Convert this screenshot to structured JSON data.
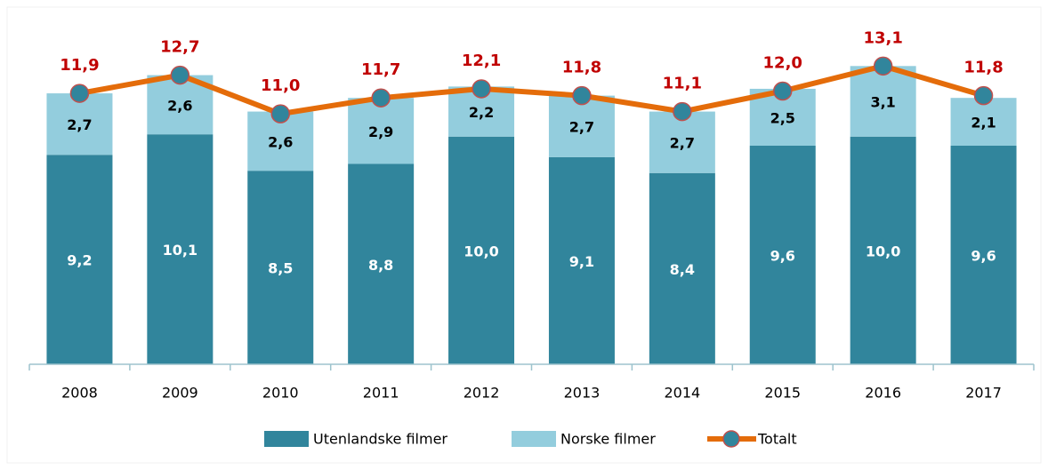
{
  "chart_data": {
    "type": "bar",
    "stacked": true,
    "categories": [
      "2008",
      "2009",
      "2010",
      "2011",
      "2012",
      "2013",
      "2014",
      "2015",
      "2016",
      "2017"
    ],
    "ylim": [
      0,
      16
    ],
    "series": [
      {
        "name": "Utenlandske filmer",
        "color": "#31859c",
        "values": [
          9.2,
          10.1,
          8.5,
          8.8,
          10.0,
          9.1,
          8.4,
          9.6,
          10.0,
          9.6
        ],
        "value_labels": [
          "9,2",
          "10,1",
          "8,5",
          "8,8",
          "10,0",
          "9,1",
          "8,4",
          "9,6",
          "10,0",
          "9,6"
        ]
      },
      {
        "name": "Norske filmer",
        "color": "#93cddd",
        "values": [
          2.7,
          2.6,
          2.6,
          2.9,
          2.2,
          2.7,
          2.7,
          2.5,
          3.1,
          2.1
        ],
        "value_labels": [
          "2,7",
          "2,6",
          "2,6",
          "2,9",
          "2,2",
          "2,7",
          "2,7",
          "2,5",
          "3,1",
          "2,1"
        ]
      },
      {
        "name": "Totalt",
        "type": "line",
        "color": "#e46c0a",
        "marker_color": "#31859c",
        "values": [
          11.9,
          12.7,
          11.0,
          11.7,
          12.1,
          11.8,
          11.1,
          12.0,
          13.1,
          11.8
        ],
        "value_labels": [
          "11,9",
          "12,7",
          "11,0",
          "11,7",
          "12,1",
          "11,8",
          "11,1",
          "12,0",
          "13,1",
          "11,8"
        ]
      }
    ],
    "legend": "bottom"
  }
}
